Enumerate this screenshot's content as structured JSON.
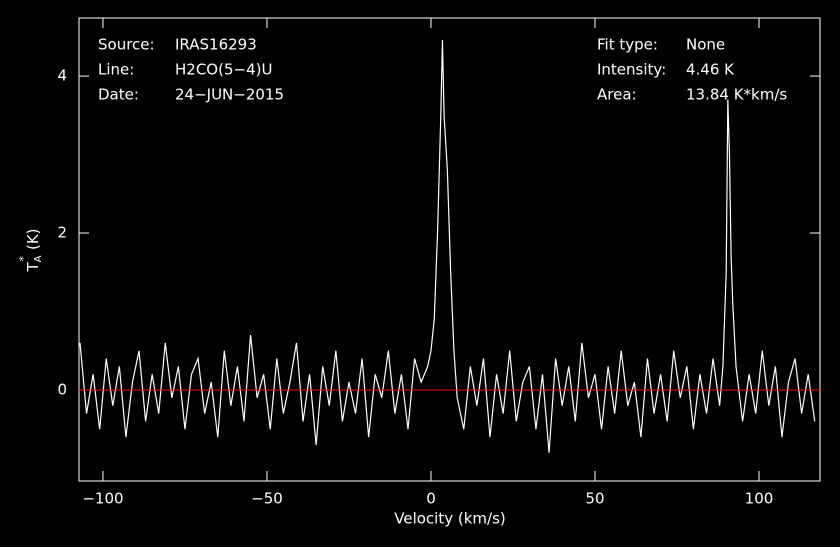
{
  "chart_data": {
    "type": "line",
    "xlabel": "Velocity (km/s)",
    "ylabel": {
      "main": "T",
      "sub": "A",
      "sup": "*",
      "unit": "(K)"
    },
    "info_left": [
      [
        "Source:",
        "IRAS16293"
      ],
      [
        "Line:",
        "H2CO(5−4)U"
      ],
      [
        "Date:",
        "24−JUN−2015"
      ]
    ],
    "info_right": [
      [
        "Fit type:",
        "None"
      ],
      [
        "Intensity:",
        "4.46 K"
      ],
      [
        "Area:",
        "13.84 K*km/s"
      ]
    ],
    "xlim": [
      -107.3,
      118.6
    ],
    "ylim": [
      -1.16,
      4.74
    ],
    "xticks": [
      {
        "value": -100,
        "label": "−100"
      },
      {
        "value": -50,
        "label": "−50"
      },
      0,
      50,
      100
    ],
    "yticks": [
      0,
      2,
      4
    ],
    "baseline": 0,
    "baseline_color": "#ff0000",
    "series": [
      {
        "color": "#ffffff",
        "x": [
          -107,
          -105,
          -103,
          -101,
          -99,
          -97,
          -95,
          -93,
          -91,
          -89,
          -87,
          -85,
          -83,
          -81,
          -79,
          -77,
          -75,
          -73,
          -71,
          -69,
          -67,
          -65,
          -63,
          -61,
          -59,
          -57,
          -55,
          -53,
          -51,
          -49,
          -47,
          -45,
          -43,
          -41,
          -39,
          -37,
          -35,
          -33,
          -31,
          -29,
          -27,
          -25,
          -23,
          -21,
          -19,
          -17,
          -15,
          -13,
          -11,
          -9,
          -7,
          -5,
          -3,
          -1,
          0,
          1,
          2,
          3,
          3.5,
          4,
          5,
          6,
          7,
          8,
          10,
          12,
          14,
          16,
          18,
          20,
          22,
          24,
          26,
          28,
          30,
          32,
          34,
          36,
          38,
          40,
          42,
          44,
          46,
          48,
          50,
          52,
          54,
          56,
          58,
          60,
          62,
          64,
          66,
          68,
          70,
          72,
          74,
          76,
          78,
          80,
          82,
          84,
          86,
          88,
          89,
          90,
          90.5,
          91,
          91.5,
          92,
          93,
          95,
          97,
          99,
          101,
          103,
          105,
          107,
          109,
          111,
          113,
          115,
          117
        ],
        "values": [
          0.6,
          -0.3,
          0.2,
          -0.5,
          0.4,
          -0.2,
          0.3,
          -0.6,
          0.1,
          0.5,
          -0.4,
          0.2,
          -0.3,
          0.6,
          -0.1,
          0.3,
          -0.5,
          0.2,
          0.4,
          -0.3,
          0.1,
          -0.6,
          0.5,
          -0.2,
          0.3,
          -0.4,
          0.7,
          -0.1,
          0.2,
          -0.5,
          0.4,
          -0.3,
          0.1,
          0.6,
          -0.4,
          0.2,
          -0.7,
          0.3,
          -0.2,
          0.5,
          -0.4,
          0.1,
          -0.3,
          0.4,
          -0.6,
          0.2,
          -0.1,
          0.5,
          -0.3,
          0.2,
          -0.5,
          0.4,
          0.1,
          0.3,
          0.5,
          0.9,
          2.0,
          3.5,
          4.46,
          3.5,
          2.8,
          1.5,
          0.5,
          -0.1,
          -0.5,
          0.3,
          -0.2,
          0.4,
          -0.6,
          0.2,
          -0.3,
          0.5,
          -0.4,
          0.1,
          0.3,
          -0.5,
          0.2,
          -0.8,
          0.4,
          -0.2,
          0.3,
          -0.4,
          0.6,
          -0.1,
          0.2,
          -0.5,
          0.3,
          -0.3,
          0.5,
          -0.2,
          0.1,
          -0.6,
          0.4,
          -0.3,
          0.2,
          -0.4,
          0.5,
          -0.1,
          0.3,
          -0.5,
          0.2,
          -0.3,
          0.4,
          -0.2,
          0.3,
          1.5,
          3.7,
          3.0,
          1.7,
          1.1,
          0.3,
          -0.4,
          0.2,
          -0.3,
          0.5,
          -0.2,
          0.3,
          -0.6,
          0.1,
          0.4,
          -0.3,
          0.2,
          -0.4
        ]
      }
    ]
  }
}
